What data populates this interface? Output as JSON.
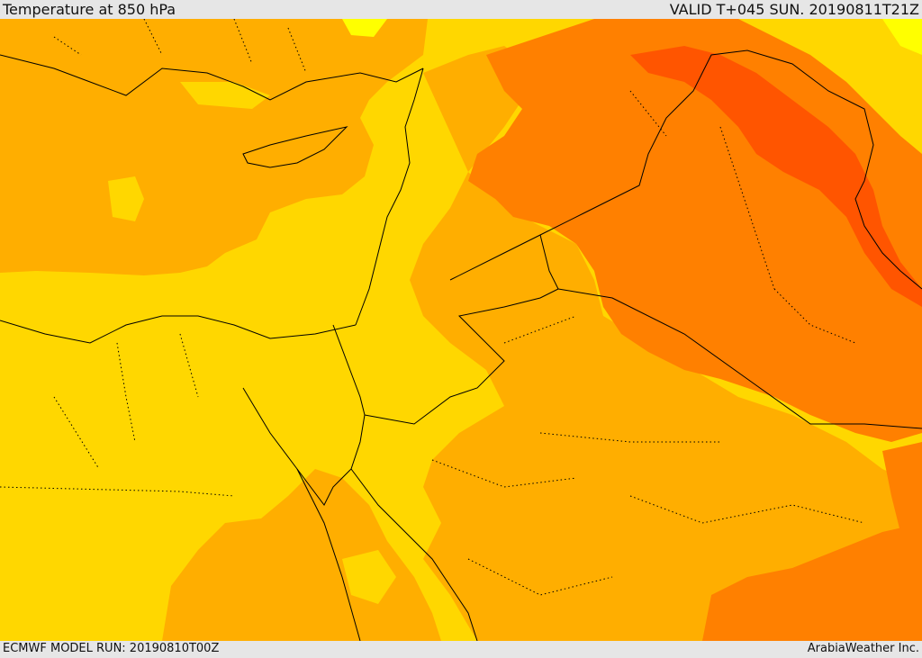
{
  "header": {
    "title": "Temperature at 850 hPa",
    "valid_time": "VALID T+045 SUN. 20190811T21Z"
  },
  "footer": {
    "model_run": "ECMWF MODEL RUN: 20190810T00Z",
    "credit": "ArabiaWeather Inc."
  },
  "map": {
    "colors": {
      "band_lowest": "#ffff00",
      "band_low": "#ffd700",
      "band_mid": "#ffae00",
      "band_high": "#ff8000",
      "band_highest": "#ff5500",
      "border": "#000000"
    }
  }
}
